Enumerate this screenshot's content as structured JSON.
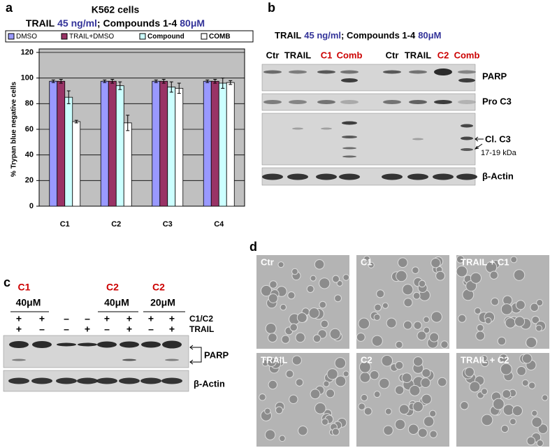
{
  "chart_data": {
    "type": "bar",
    "panel": "a",
    "title": "K562 cells",
    "subtitle_parts": [
      {
        "text": "TRAIL",
        "color": "#000000"
      },
      {
        "text": "45 ng/ml",
        "color": "#333399"
      },
      {
        "text": "; Compounds 1-4",
        "color": "#000000"
      },
      {
        "text": "80μM",
        "color": "#333399"
      }
    ],
    "y_label": "% Trypan blue negative cells",
    "categories": [
      "C1",
      "C2",
      "C3",
      "C4"
    ],
    "series": [
      {
        "name": "DMSO",
        "color": "#9999ff",
        "values": [
          97.5,
          97.5,
          97.5,
          97.5
        ],
        "errors": [
          1,
          1,
          1,
          1
        ]
      },
      {
        "name": "TRAIL+DMSO",
        "color": "#993366",
        "values": [
          97.5,
          97.5,
          97.5,
          97.5
        ],
        "errors": [
          1.5,
          1.5,
          1.5,
          1.5
        ]
      },
      {
        "name": "Compound",
        "color": "#ccffff",
        "values": [
          85,
          94,
          93,
          96
        ],
        "errors": [
          5,
          3,
          4,
          4
        ]
      },
      {
        "name": "COMB",
        "color": "#ffffff",
        "values": [
          66,
          65,
          92,
          96.5
        ],
        "errors": [
          1,
          6,
          4,
          1.5
        ]
      }
    ],
    "ylim": [
      0,
      120
    ],
    "yticks": [
      0,
      20,
      40,
      60,
      80,
      100,
      120
    ],
    "grid": true,
    "legend": "top"
  },
  "panel_b": {
    "label": "b",
    "header_parts": [
      {
        "text": "TRAIL",
        "color": "#000000"
      },
      {
        "text": "45 ng/ml",
        "color": "#333399"
      },
      {
        "text": "; Compounds 1-4",
        "color": "#000000"
      },
      {
        "text": "80μM",
        "color": "#333399"
      }
    ],
    "lanes": [
      {
        "text": "Ctr",
        "color": "#000000"
      },
      {
        "text": "TRAIL",
        "color": "#000000"
      },
      {
        "text": "C1",
        "color": "#cc0000"
      },
      {
        "text": "Comb",
        "color": "#cc0000"
      },
      {
        "text": "Ctr",
        "color": "#000000"
      },
      {
        "text": "TRAIL",
        "color": "#000000"
      },
      {
        "text": "C2",
        "color": "#cc0000"
      },
      {
        "text": "Comb",
        "color": "#cc0000"
      }
    ],
    "bands": [
      "PARP",
      "Pro C3",
      "Cl. C3",
      "17-19 kDa",
      "β-Actin"
    ]
  },
  "panel_c": {
    "label": "c",
    "groups": [
      {
        "compound": "C1",
        "conc": "40μM"
      },
      {
        "compound": "C2",
        "conc": "40μM"
      },
      {
        "compound": "C2",
        "conc": "20μM"
      }
    ],
    "compound_color": "#cc0000",
    "rows": [
      {
        "name": "C1/C2",
        "signs": [
          "+",
          "+",
          "–",
          "–",
          "+",
          "+",
          "+",
          "+"
        ]
      },
      {
        "name": "TRAIL",
        "signs": [
          "+",
          "–",
          "–",
          "+",
          "–",
          "+",
          "–",
          "+"
        ]
      }
    ],
    "bands": [
      "PARP",
      "β-Actin"
    ]
  },
  "panel_d": {
    "label": "d",
    "images": [
      "Ctr",
      "C1",
      "TRAIL + C1",
      "TRAIL",
      "C2",
      "TRAIL + C2"
    ]
  }
}
